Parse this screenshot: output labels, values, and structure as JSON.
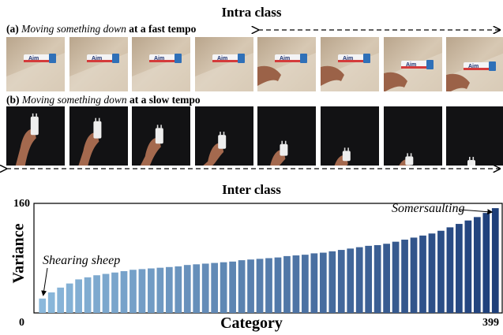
{
  "intra": {
    "title": "Intra class",
    "fast_caption": {
      "prefix": "(a) ",
      "action": "Moving something down",
      "suffix": " at a fast tempo"
    },
    "slow_caption": {
      "prefix": "(b) ",
      "action": "Moving something down",
      "suffix": " at a slow tempo"
    },
    "fast_frames": [
      {
        "label": "Aim",
        "hand": false,
        "shift": 0
      },
      {
        "label": "Aim",
        "hand": false,
        "shift": 0
      },
      {
        "label": "Aim",
        "hand": false,
        "shift": 0
      },
      {
        "label": "Aim",
        "hand": false,
        "shift": 0
      },
      {
        "label": "Aim",
        "hand": true,
        "shift": 0
      },
      {
        "label": "Aim",
        "hand": true,
        "shift": 0
      },
      {
        "label": "Aim",
        "hand": true,
        "shift": 8
      },
      {
        "label": "Aim",
        "hand": true,
        "shift": 10
      }
    ],
    "slow_frames": [
      {
        "level": 0.05
      },
      {
        "level": 0.15
      },
      {
        "level": 0.3
      },
      {
        "level": 0.45
      },
      {
        "level": 0.65
      },
      {
        "level": 0.8
      },
      {
        "level": 0.92
      },
      {
        "level": 1.0
      }
    ]
  },
  "inter": {
    "title": "Inter class"
  },
  "chart_data": {
    "type": "bar",
    "title": "Inter class",
    "xlabel": "Category",
    "ylabel": "Variance",
    "y_tick_label": "160",
    "x_tick_start": "0",
    "x_tick_end": "399",
    "ylim": [
      0,
      160
    ],
    "values": [
      21,
      30,
      37,
      43,
      49,
      52,
      55,
      57,
      59,
      61,
      63,
      64,
      65,
      66,
      67,
      68,
      70,
      71,
      72,
      73,
      74,
      75,
      77,
      78,
      79,
      80,
      81,
      83,
      84,
      85,
      87,
      88,
      90,
      92,
      94,
      96,
      98,
      99,
      101,
      104,
      107,
      110,
      113,
      116,
      120,
      125,
      130,
      135,
      140,
      146,
      153
    ],
    "color_start": "#8bb8db",
    "color_end": "#1e3f7a",
    "annotations": [
      {
        "text": "Shearing sheep",
        "bar_index": 0
      },
      {
        "text": "Somersaulting",
        "bar_index": 50
      }
    ],
    "grid": false,
    "legend": "none"
  }
}
